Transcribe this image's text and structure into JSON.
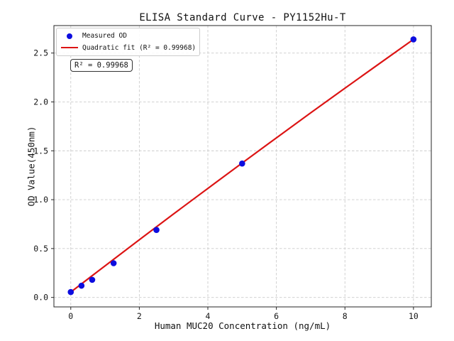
{
  "title": "ELISA Standard Curve - PY1152Hu-T",
  "axes": {
    "x_label": "Human MUC20 Concentration (ng/mL)",
    "y_label": "OD Value(450nm)",
    "x_ticks": [
      "0",
      "2",
      "4",
      "6",
      "8",
      "10"
    ],
    "x_tick_values": [
      0,
      2,
      4,
      6,
      8,
      10
    ],
    "y_ticks": [
      "0.0",
      "0.5",
      "1.0",
      "1.5",
      "2.0",
      "2.5"
    ],
    "y_tick_values": [
      0,
      0.5,
      1.0,
      1.5,
      2.0,
      2.5
    ]
  },
  "legend": {
    "items": [
      {
        "label": "Measured OD",
        "marker": "dot",
        "color": "#0d0ddf"
      },
      {
        "label": "Quadratic fit (R² = 0.99968)",
        "marker": "line",
        "color": "#dc1414"
      }
    ]
  },
  "annotation": {
    "r_squared_label": "R² = 0.99968"
  },
  "colors": {
    "grid": "#cccccc",
    "spine": "#262626",
    "text": "#141414",
    "scatter_blue": "#0d0ddf",
    "fit_red": "#dc1414",
    "background": "#ffffff"
  },
  "chart_data": {
    "type": "scatter",
    "title": "ELISA Standard Curve - PY1152Hu-T",
    "xlabel": "Human MUC20 Concentration (ng/mL)",
    "ylabel": "OD Value(450nm)",
    "xlim": [
      -0.492,
      10.52
    ],
    "ylim": [
      -0.097,
      2.781
    ],
    "grid": "dashed",
    "legend_position": "upper left",
    "r_squared": 0.99968,
    "series": [
      {
        "name": "Measured OD",
        "type": "scatter",
        "color": "#0d0ddf",
        "x": [
          0,
          0.312,
          0.625,
          1.25,
          2.5,
          5,
          10
        ],
        "y": [
          0.055,
          0.12,
          0.18,
          0.35,
          0.69,
          1.37,
          2.64
        ]
      },
      {
        "name": "Quadratic fit (R² = 0.99968)",
        "type": "line",
        "color": "#dc1414",
        "x": [
          0,
          1,
          2,
          3,
          4,
          5,
          6,
          7,
          8,
          9,
          10
        ],
        "y": [
          0.055,
          0.323,
          0.59,
          0.854,
          1.115,
          1.375,
          1.632,
          1.888,
          2.141,
          2.391,
          2.64
        ]
      }
    ]
  }
}
